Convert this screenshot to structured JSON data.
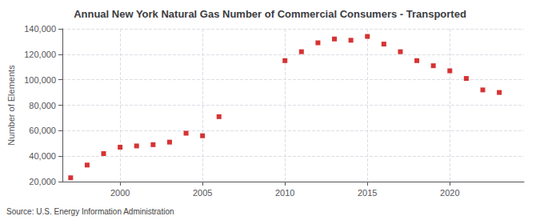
{
  "chart_data": {
    "type": "scatter",
    "title": "Annual New York Natural Gas Number of Commercial Consumers - Transported",
    "ylabel": "Number of Elements",
    "annotations": [
      "Source: U.S. Energy Information Administration"
    ],
    "x": [
      1997,
      1998,
      1999,
      2000,
      2001,
      2002,
      2003,
      2004,
      2005,
      2006,
      2010,
      2011,
      2012,
      2013,
      2014,
      2015,
      2016,
      2017,
      2018,
      2019,
      2020,
      2021,
      2022,
      2023
    ],
    "values": [
      23000,
      33000,
      42000,
      47000,
      48000,
      49000,
      51000,
      58000,
      56000,
      71000,
      115000,
      122000,
      129000,
      132000,
      131000,
      134000,
      128000,
      122000,
      115000,
      111000,
      107000,
      101000,
      92000,
      90000
    ],
    "color": "#cc0000",
    "marker": "square",
    "xlim": [
      1996.5,
      2024.5
    ],
    "ylim": [
      20000,
      140000
    ],
    "xticks": [
      2000,
      2005,
      2010,
      2015,
      2020
    ],
    "yticks": [
      {
        "value": 20000,
        "label": "20,000"
      },
      {
        "value": 40000,
        "label": "40,000"
      },
      {
        "value": 60000,
        "label": "60,000"
      },
      {
        "value": 80000,
        "label": "80,000"
      },
      {
        "value": 100000,
        "label": "100,000"
      },
      {
        "value": 120000,
        "label": "120,000"
      },
      {
        "value": 140000,
        "label": "140,000"
      }
    ],
    "grid": true
  }
}
